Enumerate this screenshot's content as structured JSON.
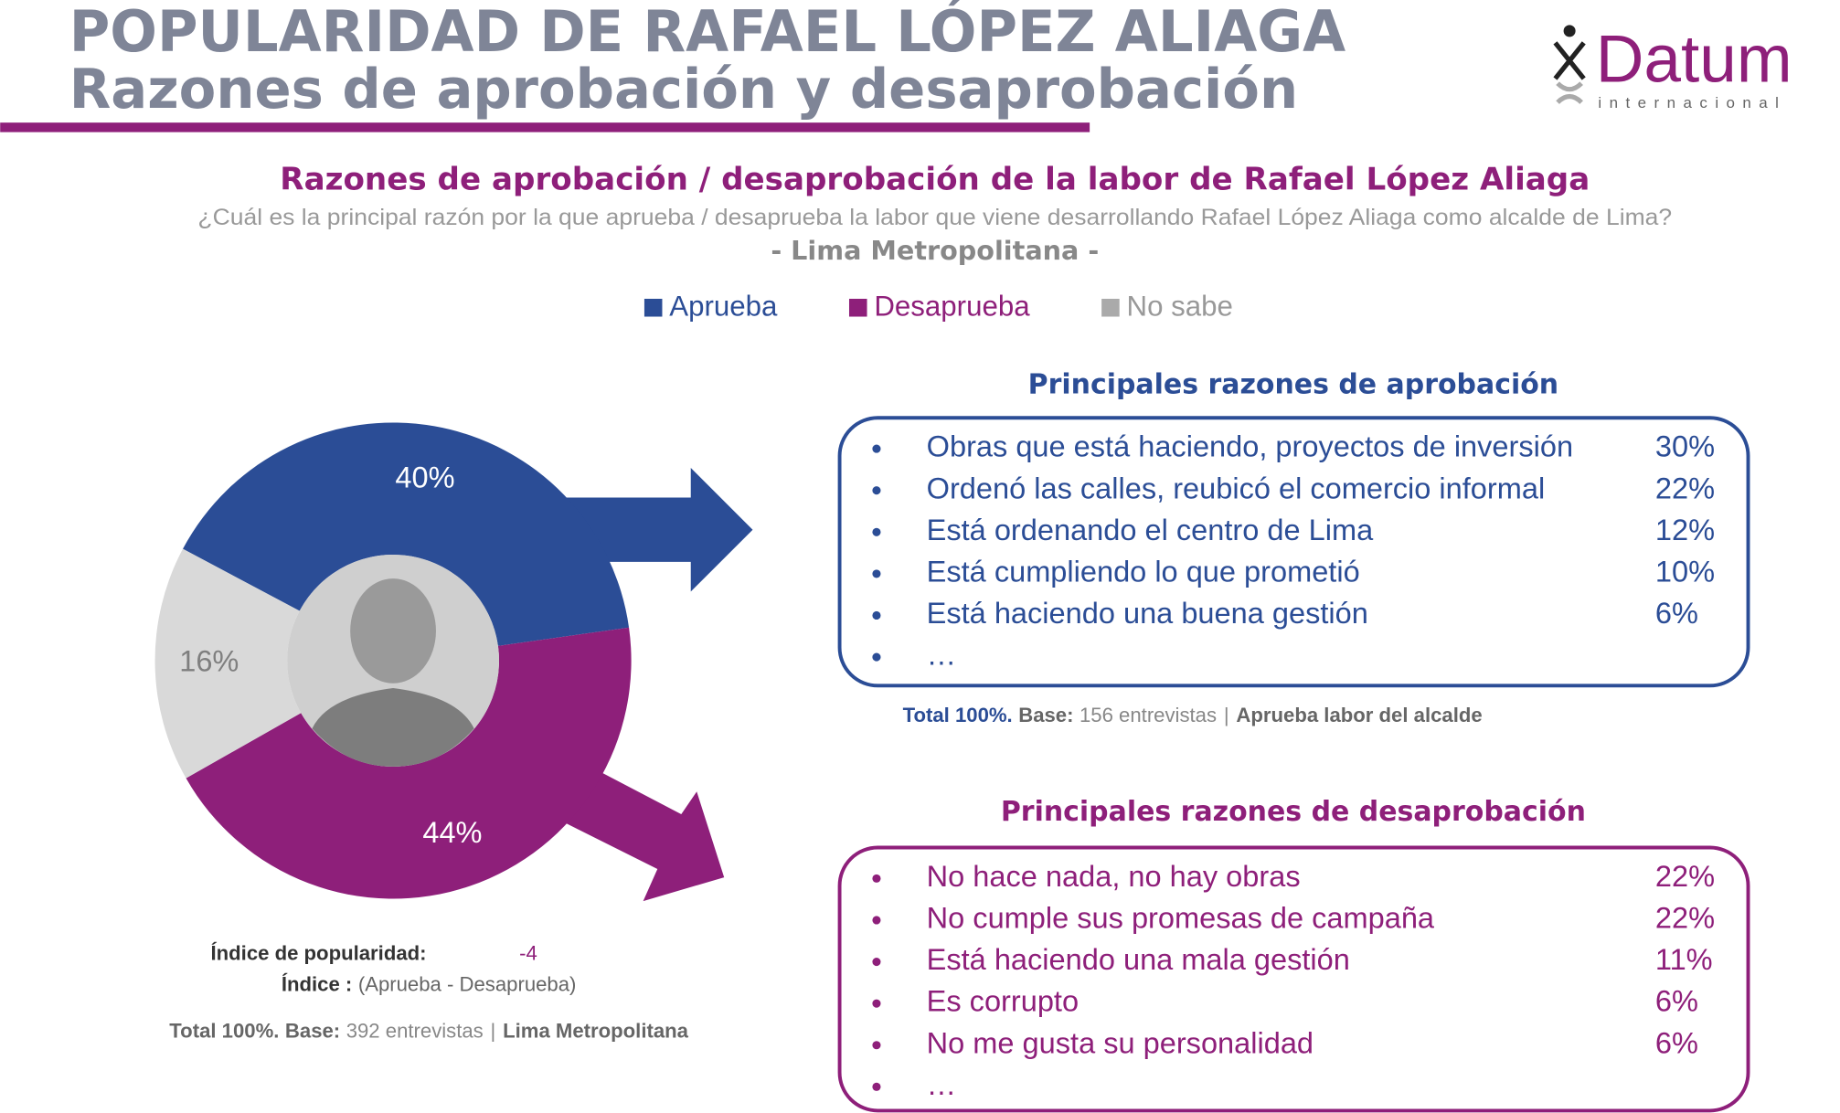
{
  "header": {
    "title": "POPULARIDAD DE RAFAEL LÓPEZ ALIAGA",
    "subtitle": "Razones de aprobación y desaprobación",
    "logo": "Datum",
    "logo_sub": "internacional"
  },
  "chart_data": {
    "type": "pie",
    "title": "Razones de aprobación / desaprobación de la labor de Rafael López Aliaga",
    "subtitle": "¿Cuál es la principal razón por la que aprueba / desaprueba la labor que viene desarrollando Rafael López Aliaga como alcalde de Lima?",
    "scope": "- Lima Metropolitana -",
    "categories": [
      "Aprueba",
      "Desaprueba",
      "No sabe"
    ],
    "values": [
      40,
      44,
      16
    ],
    "value_labels": [
      "40%",
      "44%",
      "16%"
    ],
    "colors": [
      "#2b4d96",
      "#8e1f7a",
      "#d9d9d9"
    ],
    "label_colors": [
      "#ffffff",
      "#ffffff",
      "#7f7f7f"
    ],
    "donut": true,
    "legend": "top"
  },
  "index": {
    "label": "Índice de popularidad:",
    "value": -4,
    "formula_label": "Índice :",
    "formula": "(Aprueba - Desaprueba)",
    "total": "Total 100%.",
    "base_label": "Base:",
    "base": "392 entrevistas",
    "separator": "|",
    "scope": "Lima Metropolitana"
  },
  "approval": {
    "title": "Principales razones de aprobación",
    "items": [
      {
        "text": "Obras que está haciendo, proyectos de inversión",
        "value": "30%"
      },
      {
        "text": "Ordenó las calles, reubicó el comercio informal",
        "value": "22%"
      },
      {
        "text": "Está ordenando el centro de Lima",
        "value": "12%"
      },
      {
        "text": "Está cumpliendo lo que prometió",
        "value": "10%"
      },
      {
        "text": "Está haciendo una buena gestión",
        "value": "6%"
      },
      {
        "text": "…"
      }
    ],
    "total": "Total 100%.",
    "base_label": "Base:",
    "base": "156 entrevistas",
    "separator": "|",
    "scope": "Aprueba labor del alcalde"
  },
  "disapproval": {
    "title": "Principales razones de desaprobación",
    "items": [
      {
        "text": "No hace nada, no hay obras",
        "value": "22%"
      },
      {
        "text": "No cumple sus promesas de campaña",
        "value": "22%"
      },
      {
        "text": "Está haciendo una mala gestión",
        "value": "11%"
      },
      {
        "text": "Es corrupto",
        "value": "6%"
      },
      {
        "text": "No me gusta su personalidad",
        "value": "6%"
      },
      {
        "text": "…"
      }
    ]
  }
}
